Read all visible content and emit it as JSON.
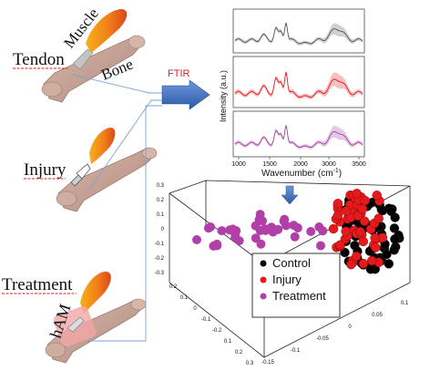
{
  "labels": {
    "tendon": "Tendon",
    "muscle": "Muscle",
    "bone": "Bone",
    "ftir": "FTIR",
    "injury": "Injury",
    "treatment": "Treatment",
    "ham": "hAM"
  },
  "spectra": {
    "ylabel": "Intensity (a.u.)",
    "xlabel": "Wavenumber (cm",
    "xlabel_sup": "-1",
    "xlabel_close": ")",
    "xticks": [
      "1000",
      "1500",
      "2000",
      "3000",
      "3500"
    ],
    "colors": {
      "control": "#555555",
      "injury": "#e41a1c",
      "treatment": "#a040a0"
    }
  },
  "pca": {
    "yticks": [
      "0.3",
      "0.2",
      "0.1",
      "0",
      "-0.1",
      "-0.2",
      "-0.3"
    ],
    "left_depth_ticks": [
      "0.2",
      "0.1",
      "0",
      "-0.1",
      "-0.2",
      "0.1",
      "0.2",
      "0.3"
    ],
    "bottom_ticks": [
      "0.1",
      "0.05",
      "0",
      "-0.05",
      "-0.1",
      "-0.15"
    ],
    "legend": [
      {
        "label": "Control",
        "color": "#000000"
      },
      {
        "label": "Injury",
        "color": "#e41a1c"
      },
      {
        "label": "Treatment",
        "color": "#b040a8"
      }
    ]
  },
  "colors": {
    "muscle": "#f07a1a",
    "bone": "#c9a79a",
    "tendon": "#b9b9b9",
    "arrow": "#3c6fc4",
    "treatment_patch": "#f3a6a6"
  }
}
